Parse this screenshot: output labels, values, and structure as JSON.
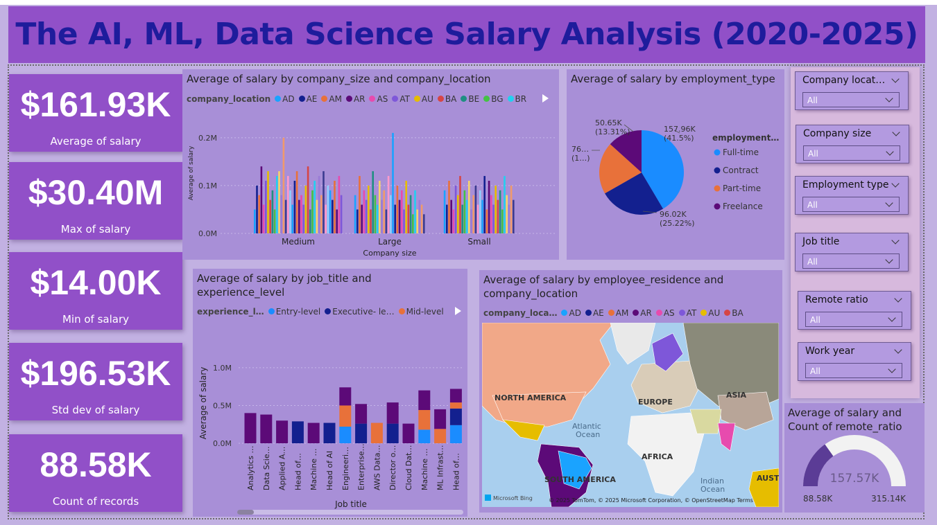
{
  "title": "The AI, ML, Data Science Salary Analysis (2020-2025)",
  "kpis": [
    {
      "value": "$161.93K",
      "label": "Average of salary"
    },
    {
      "value": "$30.40M",
      "label": "Max of salary"
    },
    {
      "value": "$14.00K",
      "label": "Min of salary"
    },
    {
      "value": "$196.53K",
      "label": "Std dev of salary"
    },
    {
      "value": "88.58K",
      "label": "Count of records"
    }
  ],
  "slicers": [
    {
      "title": "Company locat…",
      "value": "All"
    },
    {
      "title": "Company size",
      "value": "All"
    },
    {
      "title": "Employment type",
      "value": "All"
    },
    {
      "title": "Job title",
      "value": "All"
    },
    {
      "title": "Remote ratio",
      "value": "All"
    },
    {
      "title": "Work year",
      "value": "All"
    }
  ],
  "colors": {
    "AD": "#1aa3ff",
    "AE": "#13208f",
    "AM": "#e8713a",
    "AR": "#5c0a78",
    "AS": "#e74bae",
    "AT": "#7e57d9",
    "AU": "#e6bd00",
    "BA": "#d64545",
    "BE": "#1f8f82",
    "BG": "#44c244",
    "BR": "#22d0f0"
  },
  "chart_data": [
    {
      "type": "bar",
      "title": "Average of salary by company_size and company_location",
      "xlabel": "Company size",
      "ylabel": "Average of salary",
      "legend_title": "company_location",
      "legend": [
        "AD",
        "AE",
        "AM",
        "AR",
        "AS",
        "AT",
        "AU",
        "BA",
        "BE",
        "BG",
        "BR"
      ],
      "categories": [
        "Medium",
        "Large",
        "Small"
      ],
      "y_ticks": [
        "0.0M",
        "0.1M",
        "0.2M"
      ],
      "ylim": [
        0,
        0.22
      ],
      "grouped_values": {
        "Medium": [
          0.05,
          0.1,
          0.08,
          0.14,
          0.06,
          0.11,
          0.13,
          0.07,
          0.09,
          0.05,
          0.12,
          0.13,
          0.08,
          0.2,
          0.07,
          0.12,
          0.09,
          0.06,
          0.11,
          0.13,
          0.07,
          0.08,
          0.06,
          0.1,
          0.14,
          0.05,
          0.09,
          0.11,
          0.07,
          0.12,
          0.08,
          0.13,
          0.06,
          0.1,
          0.09,
          0.07,
          0.11,
          0.05,
          0.12,
          0.08
        ],
        "Large": [
          0.08,
          0.05,
          0.12,
          0.06,
          0.09,
          0.07,
          0.1,
          0.05,
          0.13,
          0.08,
          0.06,
          0.11,
          0.07,
          0.09,
          0.05,
          0.12,
          0.08,
          0.21,
          0.06,
          0.1,
          0.07,
          0.09,
          0.05,
          0.11,
          0.06,
          0.08,
          0.04,
          0.09,
          0.05,
          0.07,
          0.06,
          0.04
        ],
        "Small": [
          0.09,
          0.06,
          0.11,
          0.07,
          0.05,
          0.1,
          0.08,
          0.12,
          0.06,
          0.09,
          0.07,
          0.11,
          0.05,
          0.08,
          0.1,
          0.06,
          0.09,
          0.07,
          0.12,
          0.05,
          0.11,
          0.08,
          0.06,
          0.1,
          0.07,
          0.09,
          0.05,
          0.12,
          0.08,
          0.06,
          0.1,
          0.07
        ]
      },
      "grid": true
    },
    {
      "type": "pie",
      "title": "Average of salary by employment_type",
      "legend_title": "employment…",
      "labels": [
        "Full-time",
        "Contract",
        "Part-time",
        "Freelance"
      ],
      "values": [
        157.96,
        96.02,
        76.0,
        50.65
      ],
      "percents": [
        41.5,
        25.22,
        19.97,
        13.31
      ],
      "slice_colors": [
        "#1a8cff",
        "#13208f",
        "#e8713a",
        "#5c0a78"
      ],
      "data_labels": [
        {
          "value": "157.96K",
          "pct": "(41.5%)"
        },
        {
          "value": "96.02K",
          "pct": "(25.22%)"
        },
        {
          "value": "76…",
          "pct": "(1…)"
        },
        {
          "value": "50.65K",
          "pct": "(13.31%)"
        }
      ]
    },
    {
      "type": "bar",
      "stacked": true,
      "title": "Average of salary by job_title and experience_level",
      "xlabel": "Job title",
      "ylabel": "Average of salary",
      "legend_title": "experience_l…",
      "legend": [
        "Entry-level",
        "Executive- le…",
        "Mid-level"
      ],
      "legend_colors": [
        "#1a8cff",
        "#13208f",
        "#e8713a"
      ],
      "y_ticks": [
        "0.0M",
        "0.5M",
        "1.0M"
      ],
      "ylim": [
        0,
        1.1
      ],
      "categories": [
        "Analytics …",
        "Data Scie…",
        "Applied A…",
        "Head of…",
        "Machine …",
        "Head of AI",
        "Engineeri…",
        "Enterprise…",
        "AWS Data…",
        "Director o…",
        "Cloud Dat…",
        "Machine …",
        "ML Infrast…",
        "Head of…"
      ],
      "segments": [
        [
          {
            "c": "#5c0a78",
            "v": 0.4
          }
        ],
        [
          {
            "c": "#5c0a78",
            "v": 0.38
          }
        ],
        [
          {
            "c": "#5c0a78",
            "v": 0.3
          }
        ],
        [
          {
            "c": "#13208f",
            "v": 0.29
          }
        ],
        [
          {
            "c": "#5c0a78",
            "v": 0.27
          }
        ],
        [
          {
            "c": "#13208f",
            "v": 0.27
          }
        ],
        [
          {
            "c": "#1a8cff",
            "v": 0.22
          },
          {
            "c": "#e8713a",
            "v": 0.28
          },
          {
            "c": "#5c0a78",
            "v": 0.24
          }
        ],
        [
          {
            "c": "#13208f",
            "v": 0.26
          },
          {
            "c": "#5c0a78",
            "v": 0.26
          }
        ],
        [
          {
            "c": "#e8713a",
            "v": 0.27
          }
        ],
        [
          {
            "c": "#13208f",
            "v": 0.26
          },
          {
            "c": "#5c0a78",
            "v": 0.28
          }
        ],
        [
          {
            "c": "#5c0a78",
            "v": 0.26
          }
        ],
        [
          {
            "c": "#1a8cff",
            "v": 0.18
          },
          {
            "c": "#e8713a",
            "v": 0.26
          },
          {
            "c": "#5c0a78",
            "v": 0.26
          }
        ],
        [
          {
            "c": "#e8713a",
            "v": 0.19
          },
          {
            "c": "#5c0a78",
            "v": 0.26
          }
        ],
        [
          {
            "c": "#1a8cff",
            "v": 0.24
          },
          {
            "c": "#13208f",
            "v": 0.22
          },
          {
            "c": "#e8713a",
            "v": 0.08
          },
          {
            "c": "#5c0a78",
            "v": 0.18
          }
        ]
      ]
    },
    {
      "type": "map",
      "title": "Average of salary by employee_residence and company_location",
      "legend_title": "company_loca…",
      "legend": [
        "AD",
        "AE",
        "AM",
        "AR",
        "AS",
        "AT",
        "AU",
        "BA"
      ],
      "map_labels": [
        "NORTH AMERICA",
        "EUROPE",
        "ASIA",
        "AFRICA",
        "SOUTH AMERICA",
        "Atlantic",
        "Ocean",
        "Indian",
        "Ocean",
        "AUSTRA"
      ],
      "attribution": "© 2025 TomTom, © 2025 Microsoft Corporation, © OpenStreetMap  Terms",
      "brand": "Microsoft Bing"
    },
    {
      "type": "gauge",
      "title": "Average of salary and Count of remote_ratio",
      "value": 157.57,
      "value_label": "157.57K",
      "min": 88.58,
      "min_label": "88.58K",
      "max": 315.14,
      "max_label": "315.14K",
      "fill_color": "#5b3c96",
      "track_color": "#f2f2f2"
    }
  ]
}
